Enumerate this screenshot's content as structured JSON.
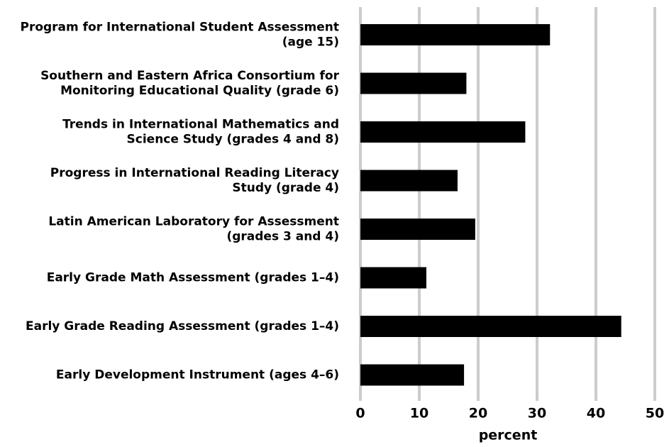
{
  "chart_data": {
    "type": "hbar",
    "categories": [
      [
        "Program for International Student Assessment",
        "(age 15)"
      ],
      [
        "Southern and Eastern Africa Consortium for",
        "Monitoring Educational Quality (grade 6)"
      ],
      [
        "Trends in International Mathematics and",
        "Science Study (grades 4 and 8)"
      ],
      [
        "Progress in International Reading Literacy",
        "Study (grade 4)"
      ],
      [
        "Latin American Laboratory for Assessment",
        "(grades 3 and 4)"
      ],
      [
        "Early Grade Math Assessment (grades 1–4)"
      ],
      [
        "Early Grade Reading Assessment (grades 1–4)"
      ],
      [
        "Early Development Instrument (ages 4–6)"
      ]
    ],
    "values": [
      32.2,
      18,
      28,
      16.5,
      19.5,
      11.2,
      44.3,
      17.6
    ],
    "color": "#000000",
    "xlim": [
      0,
      50
    ],
    "xticks": [
      0,
      10,
      20,
      30,
      40,
      50
    ],
    "xlabel": "percent",
    "grid": true
  }
}
